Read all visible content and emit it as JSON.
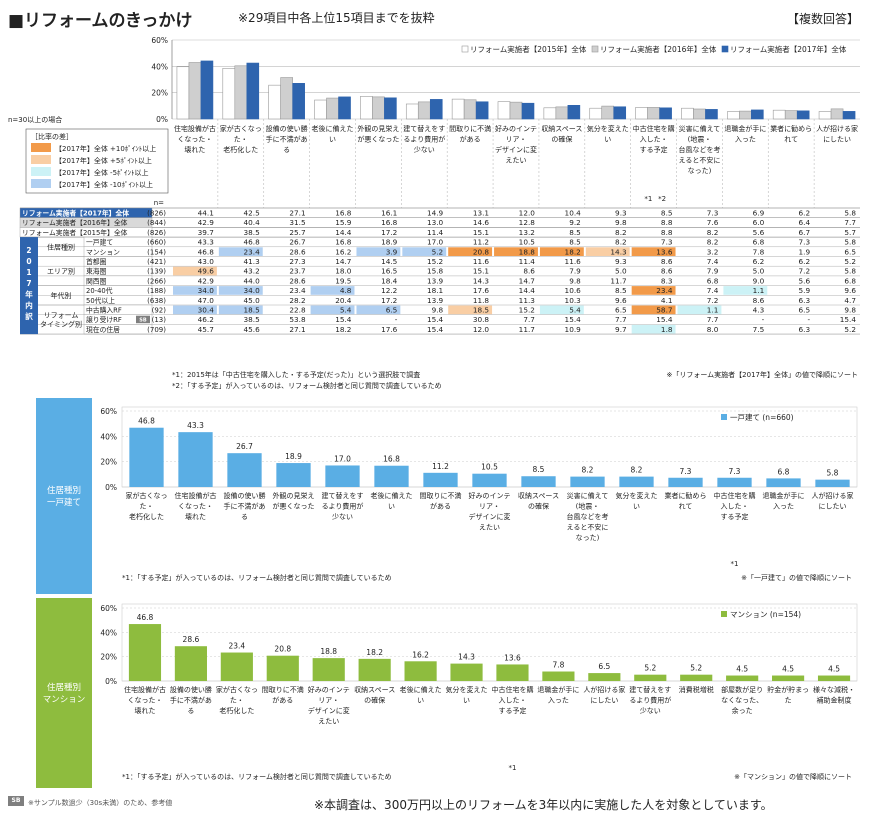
{
  "header": {
    "title": "■リフォームのきっかけ",
    "subtitle": "※29項目中各上位15項目までを抜粋",
    "badge": "【複数回答】"
  },
  "footer_text": "※本調査は、300万円以上のリフォームを3年以内に実施した人を対象としています。",
  "sb_badge": "SB",
  "sb_note": "※サンプル数過少（30s未満）のため、参考値",
  "colors": {
    "s2015": "#ffffff",
    "s2016": "#cfcfcf",
    "s2017": "#2e64ae",
    "detached": "#5aaee4",
    "mansion": "#8ebc3e",
    "hi10": "#f29a49",
    "hi5": "#f9ceA4",
    "lo5": "#ccf2f6",
    "lo10": "#b0cff1"
  },
  "legend_box": {
    "n_note": "n=30以上の場合",
    "title": "［比率の差］",
    "items": [
      "【2017年】全体 +10ﾎﾟｲﾝﾄ以上",
      "【2017年】全体 +5ﾎﾟｲﾝﾄ以上",
      "【2017年】全体 -5ﾎﾟｲﾝﾄ以上",
      "【2017年】全体 -10ﾎﾟｲﾝﾄ以上"
    ]
  },
  "table": {
    "n_label": "n=",
    "notes": [
      "*1：2015年は「中古住宅を購入した・する予定(だった)」という選択肢で調査",
      "*2：「する予定」が入っているのは、リフォーム検討者と同じ質問で調査しているため"
    ],
    "sort_note": "※「リフォーム実施者【2017年】全体」の値で降順にソート",
    "marks": [
      "*1",
      "*2"
    ],
    "vertical_label": [
      "2",
      "0",
      "1",
      "7",
      "年",
      "内",
      "訳"
    ],
    "groups": [
      "住居種別",
      "エリア別",
      "年代別",
      "リフォーム\nタイミング別"
    ],
    "rows": [
      {
        "label": "リフォーム実施者【2017年】全体",
        "n": "(826)",
        "v": [
          "44.1",
          "42.5",
          "27.1",
          "16.8",
          "16.1",
          "14.9",
          "13.1",
          "12.0",
          "10.4",
          "9.3",
          "8.5",
          "7.3",
          "6.9",
          "6.2",
          "5.8"
        ],
        "c": [
          0,
          0,
          0,
          0,
          0,
          0,
          0,
          0,
          0,
          0,
          0,
          0,
          0,
          0,
          0
        ]
      },
      {
        "label": "リフォーム実施者【2016年】全体",
        "n": "(844)",
        "v": [
          "42.9",
          "40.4",
          "31.5",
          "15.9",
          "16.8",
          "13.0",
          "14.6",
          "12.8",
          "9.2",
          "9.8",
          "8.8",
          "7.6",
          "6.0",
          "6.4",
          "7.7"
        ],
        "c": [
          0,
          0,
          0,
          0,
          0,
          0,
          0,
          0,
          0,
          0,
          0,
          0,
          0,
          0,
          0
        ]
      },
      {
        "label": "リフォーム実施者【2015年】全体",
        "n": "(826)",
        "v": [
          "39.7",
          "38.5",
          "25.7",
          "14.4",
          "17.2",
          "11.4",
          "15.1",
          "13.2",
          "8.5",
          "8.2",
          "8.8",
          "8.2",
          "5.6",
          "6.7",
          "5.7"
        ],
        "c": [
          0,
          0,
          0,
          0,
          0,
          0,
          0,
          0,
          0,
          0,
          0,
          0,
          0,
          0,
          0
        ]
      },
      {
        "label": "一戸建て",
        "n": "(660)",
        "v": [
          "43.3",
          "46.8",
          "26.7",
          "16.8",
          "18.9",
          "17.0",
          "11.2",
          "10.5",
          "8.5",
          "8.2",
          "7.3",
          "8.2",
          "6.8",
          "7.3",
          "5.8"
        ],
        "c": [
          0,
          0,
          0,
          0,
          0,
          0,
          0,
          0,
          0,
          0,
          0,
          0,
          0,
          0,
          0
        ]
      },
      {
        "label": "マンション",
        "n": "(154)",
        "v": [
          "46.8",
          "23.4",
          "28.6",
          "16.2",
          "3.9",
          "5.2",
          "20.8",
          "18.8",
          "18.2",
          "14.3",
          "13.6",
          "3.2",
          "7.8",
          "1.9",
          "6.5"
        ],
        "c": [
          0,
          4,
          0,
          0,
          4,
          4,
          1,
          1,
          1,
          2,
          1,
          0,
          0,
          0,
          0
        ]
      },
      {
        "label": "首都圏",
        "n": "(421)",
        "v": [
          "43.0",
          "41.3",
          "27.3",
          "14.7",
          "14.5",
          "15.2",
          "11.6",
          "11.4",
          "11.6",
          "9.3",
          "8.6",
          "7.4",
          "6.2",
          "6.2",
          "5.2"
        ],
        "c": [
          0,
          0,
          0,
          0,
          0,
          0,
          0,
          0,
          0,
          0,
          0,
          0,
          0,
          0,
          0
        ]
      },
      {
        "label": "東海圏",
        "n": "(139)",
        "v": [
          "49.6",
          "43.2",
          "23.7",
          "18.0",
          "16.5",
          "15.8",
          "15.1",
          "8.6",
          "7.9",
          "5.0",
          "8.6",
          "7.9",
          "5.0",
          "7.2",
          "5.8"
        ],
        "c": [
          2,
          0,
          0,
          0,
          0,
          0,
          0,
          0,
          0,
          0,
          0,
          0,
          0,
          0,
          0
        ]
      },
      {
        "label": "関西圏",
        "n": "(266)",
        "v": [
          "42.9",
          "44.0",
          "28.6",
          "19.5",
          "18.4",
          "13.9",
          "14.3",
          "14.7",
          "9.8",
          "11.7",
          "8.3",
          "6.8",
          "9.0",
          "5.6",
          "6.8"
        ],
        "c": [
          0,
          0,
          0,
          0,
          0,
          0,
          0,
          0,
          0,
          0,
          0,
          0,
          0,
          0,
          0
        ]
      },
      {
        "label": "20-40代",
        "n": "(188)",
        "v": [
          "34.0",
          "34.0",
          "23.4",
          "4.8",
          "12.2",
          "18.1",
          "17.6",
          "14.4",
          "10.6",
          "8.5",
          "23.4",
          "7.4",
          "1.1",
          "5.9",
          "9.6"
        ],
        "c": [
          4,
          4,
          0,
          4,
          0,
          0,
          0,
          0,
          0,
          0,
          1,
          0,
          3,
          0,
          0
        ]
      },
      {
        "label": "50代以上",
        "n": "(638)",
        "v": [
          "47.0",
          "45.0",
          "28.2",
          "20.4",
          "17.2",
          "13.9",
          "11.8",
          "11.3",
          "10.3",
          "9.6",
          "4.1",
          "7.2",
          "8.6",
          "6.3",
          "4.7"
        ],
        "c": [
          0,
          0,
          0,
          0,
          0,
          0,
          0,
          0,
          0,
          0,
          0,
          0,
          0,
          0,
          0
        ]
      },
      {
        "label": "中古購入RF",
        "n": "(92)",
        "v": [
          "30.4",
          "18.5",
          "22.8",
          "5.4",
          "6.5",
          "9.8",
          "18.5",
          "15.2",
          "5.4",
          "6.5",
          "58.7",
          "1.1",
          "4.3",
          "6.5",
          "9.8"
        ],
        "c": [
          4,
          4,
          0,
          4,
          4,
          0,
          2,
          0,
          3,
          0,
          1,
          3,
          0,
          0,
          0
        ]
      },
      {
        "label": "譲り受けRF",
        "n": "(13)",
        "v": [
          "46.2",
          "38.5",
          "53.8",
          "15.4",
          "-",
          "15.4",
          "30.8",
          "7.7",
          "15.4",
          "7.7",
          "15.4",
          "7.7",
          "-",
          "-",
          "15.4"
        ],
        "c": [
          0,
          0,
          0,
          0,
          0,
          0,
          0,
          0,
          0,
          0,
          0,
          0,
          0,
          0,
          0
        ]
      },
      {
        "label": "現在の住居",
        "n": "(709)",
        "v": [
          "45.7",
          "45.6",
          "27.1",
          "18.2",
          "17.6",
          "15.4",
          "12.0",
          "11.7",
          "10.9",
          "9.7",
          "1.8",
          "8.0",
          "7.5",
          "6.3",
          "5.2"
        ],
        "c": [
          0,
          0,
          0,
          0,
          0,
          0,
          0,
          0,
          0,
          0,
          3,
          0,
          0,
          0,
          0
        ]
      }
    ]
  },
  "chart_data": [
    {
      "type": "bar",
      "categories": [
        "住宅設備が古くなった・壊れた",
        "家が古くなった・老朽化した",
        "設備の使い勝手に不満がある",
        "老後に備えたい",
        "外観の見栄えが悪くなった",
        "建て替えをするより費用が少ない",
        "間取りに不満がある",
        "好みのインテリア・デザインに変えたい",
        "収納スペースの確保",
        "気分を変えたい",
        "中古住宅を購入した・する予定",
        "災害に備えて(地震・台風などを考えると不安になった)",
        "退職金が手に入った",
        "業者に勧められて",
        "人が招ける家にしたい"
      ],
      "series": [
        {
          "name": "リフォーム実施者【2015年】全体",
          "values": [
            39.7,
            38.5,
            25.7,
            14.4,
            17.2,
            11.4,
            15.1,
            13.2,
            8.5,
            8.2,
            8.8,
            8.2,
            5.6,
            6.7,
            5.7
          ]
        },
        {
          "name": "リフォーム実施者【2016年】全体",
          "values": [
            42.9,
            40.4,
            31.5,
            15.9,
            16.8,
            13.0,
            14.6,
            12.8,
            9.2,
            9.8,
            8.8,
            7.6,
            6.0,
            6.4,
            7.7
          ]
        },
        {
          "name": "リフォーム実施者【2017年】全体",
          "values": [
            44.1,
            42.5,
            27.1,
            16.8,
            16.1,
            14.9,
            13.1,
            12.0,
            10.4,
            9.3,
            8.5,
            7.3,
            6.9,
            6.2,
            5.8
          ]
        }
      ],
      "yticks": [
        "60%",
        "40%",
        "20%",
        "0%"
      ],
      "ylim": [
        0,
        60
      ],
      "legend": "top-right"
    },
    {
      "type": "bar",
      "side_label": "住居種別\n一戸建て",
      "categories": [
        "家が古くなった・老朽化した",
        "住宅設備が古くなった・壊れた",
        "設備の使い勝手に不満がある",
        "外観の見栄えが悪くなった",
        "建て替えをするより費用が少ない",
        "老後に備えたい",
        "間取りに不満がある",
        "好みのインテリア・デザインに変えたい",
        "収納スペースの確保",
        "災害に備えて(地震・台風などを考えると不安になった)",
        "気分を変えたい",
        "業者に勧められて",
        "中古住宅を購入した・する予定",
        "退職金が手に入った",
        "人が招ける家にしたい"
      ],
      "series": [
        {
          "name": "一戸建て (n=660)",
          "values": [
            46.8,
            43.3,
            26.7,
            18.9,
            17.0,
            16.8,
            11.2,
            10.5,
            8.5,
            8.2,
            8.2,
            7.3,
            7.3,
            6.8,
            5.8
          ]
        }
      ],
      "yticks": [
        "60%",
        "40%",
        "20%",
        "0%"
      ],
      "ylim": [
        0,
        60
      ],
      "note": "*1：「する予定」が入っているのは、リフォーム検討者と同じ質問で調査しているため",
      "sort_note": "※「一戸建て」の値で降順にソート",
      "mark": "*1",
      "mark_index": 12
    },
    {
      "type": "bar",
      "side_label": "住居種別\nマンション",
      "categories": [
        "住宅設備が古くなった・壊れた",
        "設備の使い勝手に不満がある",
        "家が古くなった・老朽化した",
        "間取りに不満がある",
        "好みのインテリア・デザインに変えたい",
        "収納スペースの確保",
        "老後に備えたい",
        "気分を変えたい",
        "中古住宅を購入した・する予定",
        "退職金が手に入った",
        "人が招ける家にしたい",
        "建て替えをするより費用が少ない",
        "消費税増税",
        "部屋数が足りなくなった、余った",
        "貯金が貯まった",
        "様々な減税・補助金制度"
      ],
      "series": [
        {
          "name": "マンション (n=154)",
          "values": [
            46.8,
            28.6,
            23.4,
            20.8,
            18.8,
            18.2,
            16.2,
            14.3,
            13.6,
            7.8,
            6.5,
            5.2,
            5.2,
            4.5,
            4.5,
            4.5
          ]
        }
      ],
      "yticks": [
        "60%",
        "40%",
        "20%",
        "0%"
      ],
      "ylim": [
        0,
        60
      ],
      "note": "*1：「する予定」が入っているのは、リフォーム検討者と同じ質問で調査しているため",
      "sort_note": "※「マンション」の値で降順にソート",
      "mark": "*1",
      "mark_index": 8
    }
  ]
}
